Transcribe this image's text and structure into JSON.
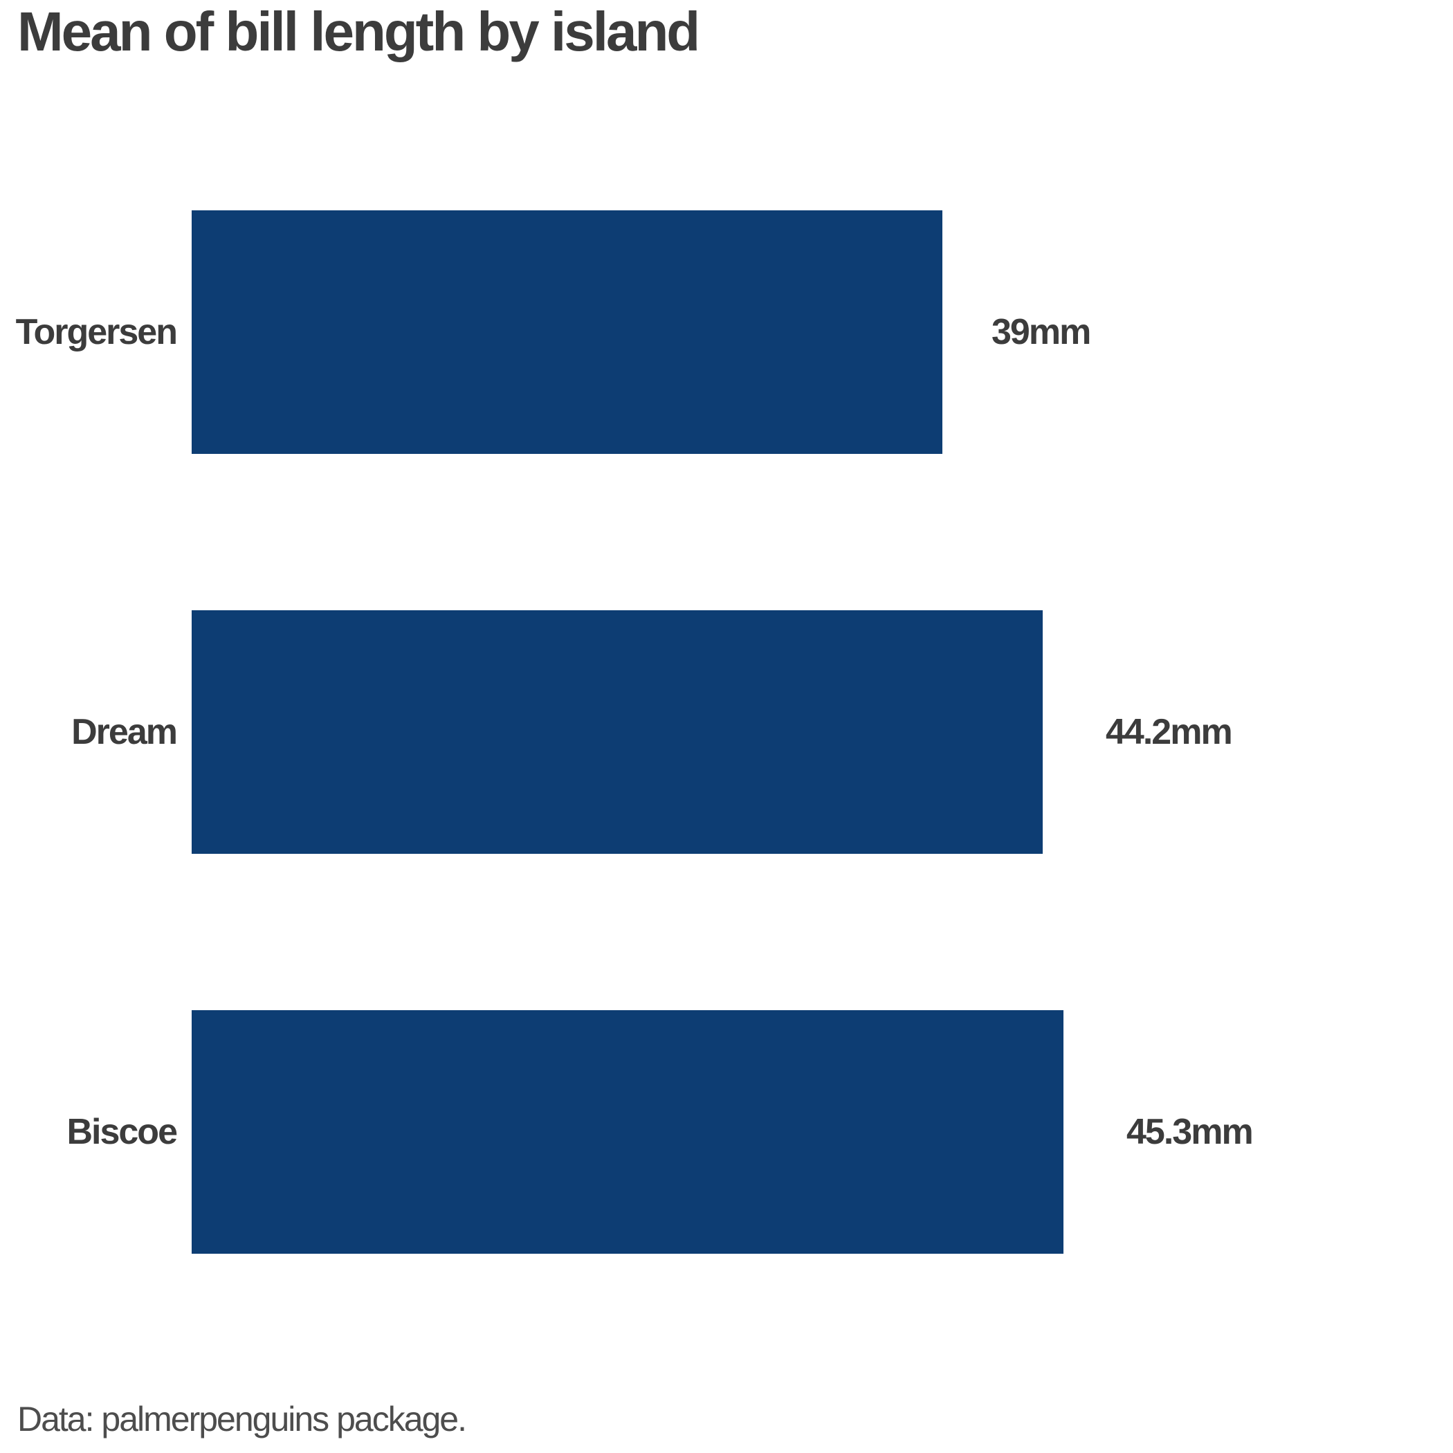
{
  "chart": {
    "title": "Mean of bill length by island",
    "caption": "Data: palmerpenguins package."
  },
  "chart_data": {
    "type": "bar",
    "orientation": "horizontal",
    "title": "Mean of bill length by island",
    "caption": "Data: palmerpenguins package.",
    "categories": [
      "Torgersen",
      "Dream",
      "Biscoe"
    ],
    "values": [
      39,
      44.2,
      45.3
    ],
    "unit": "mm",
    "rows": [
      {
        "label": "Torgersen",
        "value": 39,
        "value_label": "39mm"
      },
      {
        "label": "Dream",
        "value": 44.2,
        "value_label": "44.2mm"
      },
      {
        "label": "Biscoe",
        "value": 45.3,
        "value_label": "45.3mm"
      }
    ],
    "xlim": [
      0,
      45.3
    ],
    "grid": "off",
    "legend": "none",
    "axis_lines": "none",
    "bar_color": "#0d3d73",
    "text_color": "#3c3c3c",
    "caption_color": "#4d4d4d",
    "background_color": "#ffffff"
  }
}
